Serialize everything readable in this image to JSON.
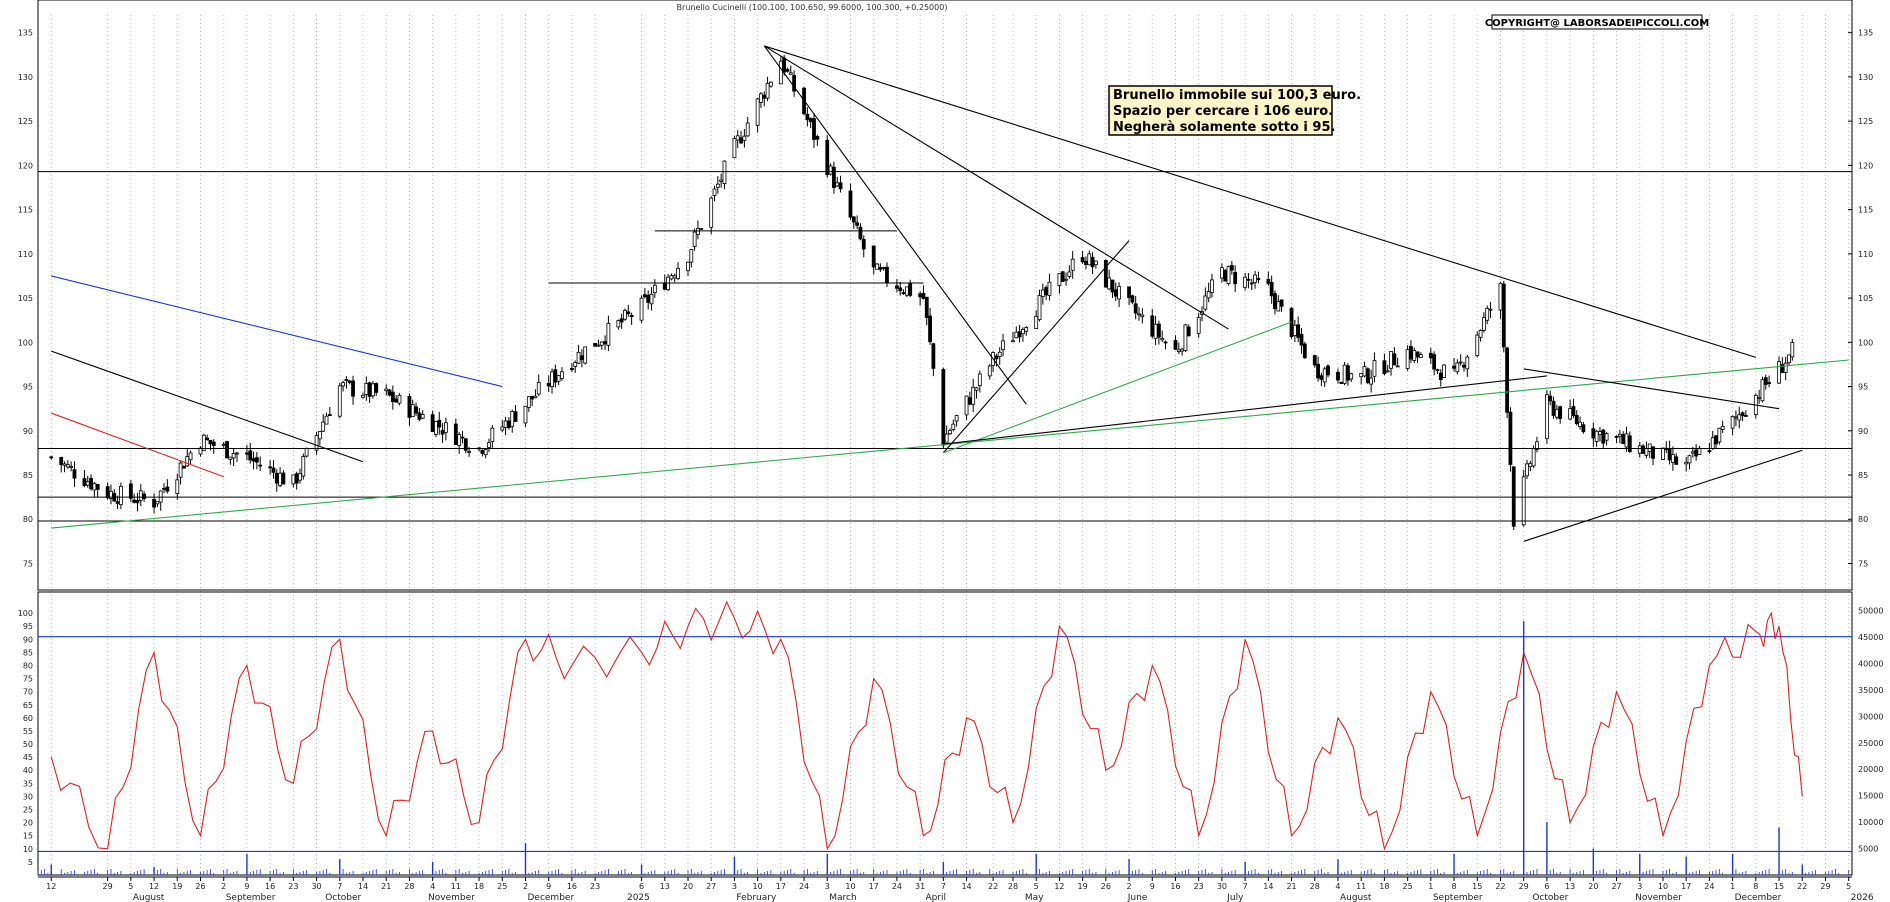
{
  "chart_data": {
    "type": "line",
    "subtype": "candlestick",
    "title": "Brunello Cucinelli (100.100, 100.650, 99.6000, 100.300, +0.25000)",
    "copyright": "COPYRIGHT@ LABORSADEIPICCOLI.COM",
    "annotation": [
      "Brunello immobile sui 100,3 euro.",
      "Spazio per cercare i 106 euro.",
      "Negherà solamente sotto i 95."
    ],
    "price_axis": {
      "ylim": [
        72,
        137
      ],
      "ticks": [
        75,
        80,
        85,
        90,
        95,
        100,
        105,
        110,
        115,
        120,
        125,
        130,
        135
      ]
    },
    "price_levels": [
      119.3,
      106.7,
      112.6,
      88.0,
      82.5,
      79.8
    ],
    "price_series": {
      "name": "close",
      "dates": [
        "2024-07-12",
        "2024-07-29",
        "2024-08-12",
        "2024-08-26",
        "2024-09-09",
        "2024-09-23",
        "2024-10-07",
        "2024-10-21",
        "2024-11-04",
        "2024-11-18",
        "2024-12-02",
        "2024-12-16",
        "2025-01-06",
        "2025-01-20",
        "2025-02-03",
        "2025-02-10",
        "2025-02-17",
        "2025-03-03",
        "2025-03-17",
        "2025-04-01",
        "2025-04-07",
        "2025-04-22",
        "2025-05-05",
        "2025-05-19",
        "2025-06-02",
        "2025-06-16",
        "2025-06-30",
        "2025-07-14",
        "2025-07-28",
        "2025-08-11",
        "2025-08-25",
        "2025-09-08",
        "2025-09-22",
        "2025-09-26",
        "2025-10-06",
        "2025-10-20",
        "2025-11-03",
        "2025-11-17",
        "2025-12-01",
        "2025-12-15",
        "2025-12-22"
      ],
      "values": [
        87,
        83,
        82,
        89,
        87,
        84,
        95,
        94,
        91,
        88,
        93,
        98,
        104,
        110,
        122,
        127,
        132,
        120,
        108,
        105,
        89,
        98,
        104,
        110,
        104,
        99,
        108,
        106,
        97,
        96,
        99,
        96,
        106,
        80,
        93,
        90,
        88,
        86,
        91,
        97,
        100.3
      ]
    },
    "trendlines": [
      {
        "color": "#000000",
        "from": [
          "2024-07-12",
          99
        ],
        "to": [
          "2024-10-14",
          86.5
        ]
      },
      {
        "color": "#e02020",
        "from": [
          "2024-07-12",
          92
        ],
        "to": [
          "2024-09-02",
          84.8
        ]
      },
      {
        "color": "#1a35d8",
        "from": [
          "2024-07-12",
          107.5
        ],
        "to": [
          "2024-11-25",
          95
        ]
      },
      {
        "color": "#2ea84a",
        "from": [
          "2024-07-12",
          79
        ],
        "to": [
          "2026-01-05",
          98
        ]
      },
      {
        "color": "#000000",
        "from": [
          "2025-02-12",
          133.5
        ],
        "to": [
          "2025-12-08",
          98.3
        ]
      },
      {
        "color": "#000000",
        "from": [
          "2025-02-12",
          133.5
        ],
        "to": [
          "2025-07-02",
          101.5
        ]
      },
      {
        "color": "#000000",
        "from": [
          "2025-02-12",
          133.5
        ],
        "to": [
          "2025-05-02",
          93
        ]
      },
      {
        "color": "#000000",
        "from": [
          "2025-04-07",
          87.5
        ],
        "to": [
          "2025-06-02",
          111.5
        ]
      },
      {
        "color": "#2ea84a",
        "from": [
          "2025-04-07",
          87.5
        ],
        "to": [
          "2025-07-21",
          102.3
        ]
      },
      {
        "color": "#000000",
        "from": [
          "2025-04-07",
          88.5
        ],
        "to": [
          "2025-10-06",
          96.2
        ]
      },
      {
        "color": "#000000",
        "from": [
          "2025-09-29",
          77.5
        ],
        "to": [
          "2025-12-22",
          87.8
        ]
      },
      {
        "color": "#000000",
        "from": [
          "2025-09-29",
          97
        ],
        "to": [
          "2025-12-15",
          92.5
        ]
      }
    ],
    "oscillator": {
      "name": "stochastic",
      "color": "#e02020",
      "ylim": [
        0,
        105
      ],
      "ticks": [
        5,
        10,
        15,
        20,
        25,
        30,
        35,
        40,
        45,
        50,
        55,
        60,
        65,
        70,
        75,
        80,
        85,
        90,
        95,
        100
      ],
      "bands": [
        91,
        9
      ],
      "dates": [
        "2024-07-12",
        "2024-07-29",
        "2024-08-12",
        "2024-08-26",
        "2024-09-09",
        "2024-09-23",
        "2024-10-07",
        "2024-10-21",
        "2024-11-04",
        "2024-11-18",
        "2024-12-02",
        "2024-12-16",
        "2025-01-06",
        "2025-01-20",
        "2025-02-03",
        "2025-02-17",
        "2025-03-03",
        "2025-03-17",
        "2025-04-01",
        "2025-04-14",
        "2025-04-28",
        "2025-05-12",
        "2025-05-26",
        "2025-06-09",
        "2025-06-23",
        "2025-07-07",
        "2025-07-21",
        "2025-08-04",
        "2025-08-18",
        "2025-09-01",
        "2025-09-15",
        "2025-09-29",
        "2025-10-13",
        "2025-10-27",
        "2025-11-10",
        "2025-11-24",
        "2025-12-08",
        "2025-12-15",
        "2025-12-22"
      ],
      "values": [
        45,
        10,
        85,
        15,
        80,
        35,
        90,
        15,
        55,
        20,
        90,
        80,
        85,
        95,
        98,
        90,
        10,
        75,
        15,
        60,
        20,
        95,
        40,
        80,
        15,
        90,
        15,
        60,
        10,
        70,
        15,
        85,
        20,
        70,
        15,
        80,
        93,
        95,
        30
      ]
    },
    "volume": {
      "color": "#1a35d8",
      "ylim": [
        0,
        52000
      ],
      "ticks": [
        5000,
        10000,
        15000,
        20000,
        25000,
        30000,
        35000,
        40000,
        45000,
        50000
      ],
      "dates": [
        "2024-07-12",
        "2024-08-12",
        "2024-09-09",
        "2024-10-07",
        "2024-11-04",
        "2024-12-02",
        "2025-01-06",
        "2025-02-03",
        "2025-03-03",
        "2025-04-07",
        "2025-05-05",
        "2025-06-02",
        "2025-07-07",
        "2025-08-04",
        "2025-09-08",
        "2025-09-29",
        "2025-10-06",
        "2025-10-20",
        "2025-11-03",
        "2025-11-17",
        "2025-12-01",
        "2025-12-15",
        "2025-12-22"
      ],
      "values": [
        2000,
        1500,
        4000,
        3000,
        2500,
        6000,
        2000,
        3500,
        4000,
        2500,
        4000,
        3000,
        2500,
        3000,
        4000,
        48000,
        10000,
        5000,
        4000,
        3500,
        4000,
        9000,
        2000
      ]
    },
    "x_axis": {
      "range": [
        "2024-07-08",
        "2026-01-06"
      ],
      "day_ticks": [
        {
          "label": "12",
          "date": "2024-07-12"
        },
        {
          "label": "29",
          "date": "2024-07-29"
        },
        {
          "label": "5",
          "date": "2024-08-05"
        },
        {
          "label": "12",
          "date": "2024-08-12"
        },
        {
          "label": "19",
          "date": "2024-08-19"
        },
        {
          "label": "26",
          "date": "2024-08-26"
        },
        {
          "label": "2",
          "date": "2024-09-02"
        },
        {
          "label": "9",
          "date": "2024-09-09"
        },
        {
          "label": "16",
          "date": "2024-09-16"
        },
        {
          "label": "23",
          "date": "2024-09-23"
        },
        {
          "label": "30",
          "date": "2024-09-30"
        },
        {
          "label": "7",
          "date": "2024-10-07"
        },
        {
          "label": "14",
          "date": "2024-10-14"
        },
        {
          "label": "21",
          "date": "2024-10-21"
        },
        {
          "label": "28",
          "date": "2024-10-28"
        },
        {
          "label": "4",
          "date": "2024-11-04"
        },
        {
          "label": "11",
          "date": "2024-11-11"
        },
        {
          "label": "18",
          "date": "2024-11-18"
        },
        {
          "label": "25",
          "date": "2024-11-25"
        },
        {
          "label": "2",
          "date": "2024-12-02"
        },
        {
          "label": "9",
          "date": "2024-12-09"
        },
        {
          "label": "16",
          "date": "2024-12-16"
        },
        {
          "label": "23",
          "date": "2024-12-23"
        },
        {
          "label": "6",
          "date": "2025-01-06"
        },
        {
          "label": "13",
          "date": "2025-01-13"
        },
        {
          "label": "20",
          "date": "2025-01-20"
        },
        {
          "label": "27",
          "date": "2025-01-27"
        },
        {
          "label": "3",
          "date": "2025-02-03"
        },
        {
          "label": "10",
          "date": "2025-02-10"
        },
        {
          "label": "17",
          "date": "2025-02-17"
        },
        {
          "label": "24",
          "date": "2025-02-24"
        },
        {
          "label": "3",
          "date": "2025-03-03"
        },
        {
          "label": "10",
          "date": "2025-03-10"
        },
        {
          "label": "17",
          "date": "2025-03-17"
        },
        {
          "label": "24",
          "date": "2025-03-24"
        },
        {
          "label": "31",
          "date": "2025-03-31"
        },
        {
          "label": "7",
          "date": "2025-04-07"
        },
        {
          "label": "14",
          "date": "2025-04-14"
        },
        {
          "label": "22",
          "date": "2025-04-22"
        },
        {
          "label": "28",
          "date": "2025-04-28"
        },
        {
          "label": "5",
          "date": "2025-05-05"
        },
        {
          "label": "12",
          "date": "2025-05-12"
        },
        {
          "label": "19",
          "date": "2025-05-19"
        },
        {
          "label": "26",
          "date": "2025-05-26"
        },
        {
          "label": "2",
          "date": "2025-06-02"
        },
        {
          "label": "9",
          "date": "2025-06-09"
        },
        {
          "label": "16",
          "date": "2025-06-16"
        },
        {
          "label": "23",
          "date": "2025-06-23"
        },
        {
          "label": "30",
          "date": "2025-06-30"
        },
        {
          "label": "7",
          "date": "2025-07-07"
        },
        {
          "label": "14",
          "date": "2025-07-14"
        },
        {
          "label": "21",
          "date": "2025-07-21"
        },
        {
          "label": "28",
          "date": "2025-07-28"
        },
        {
          "label": "4",
          "date": "2025-08-04"
        },
        {
          "label": "11",
          "date": "2025-08-11"
        },
        {
          "label": "18",
          "date": "2025-08-18"
        },
        {
          "label": "25",
          "date": "2025-08-25"
        },
        {
          "label": "1",
          "date": "2025-09-01"
        },
        {
          "label": "8",
          "date": "2025-09-08"
        },
        {
          "label": "15",
          "date": "2025-09-15"
        },
        {
          "label": "22",
          "date": "2025-09-22"
        },
        {
          "label": "29",
          "date": "2025-09-29"
        },
        {
          "label": "6",
          "date": "2025-10-06"
        },
        {
          "label": "13",
          "date": "2025-10-13"
        },
        {
          "label": "20",
          "date": "2025-10-20"
        },
        {
          "label": "27",
          "date": "2025-10-27"
        },
        {
          "label": "3",
          "date": "2025-11-03"
        },
        {
          "label": "10",
          "date": "2025-11-10"
        },
        {
          "label": "17",
          "date": "2025-11-17"
        },
        {
          "label": "24",
          "date": "2025-11-24"
        },
        {
          "label": "1",
          "date": "2025-12-01"
        },
        {
          "label": "8",
          "date": "2025-12-08"
        },
        {
          "label": "15",
          "date": "2025-12-15"
        },
        {
          "label": "22",
          "date": "2025-12-22"
        },
        {
          "label": "29",
          "date": "2025-12-29"
        },
        {
          "label": "5",
          "date": "2026-01-05"
        }
      ],
      "month_labels": [
        {
          "label": "August",
          "date": "2024-08-05"
        },
        {
          "label": "September",
          "date": "2024-09-02"
        },
        {
          "label": "October",
          "date": "2024-10-02"
        },
        {
          "label": "November",
          "date": "2024-11-02"
        },
        {
          "label": "December",
          "date": "2024-12-02"
        },
        {
          "label": "2025",
          "date": "2025-01-01"
        },
        {
          "label": "February",
          "date": "2025-02-03"
        },
        {
          "label": "March",
          "date": "2025-03-03"
        },
        {
          "label": "April",
          "date": "2025-04-01"
        },
        {
          "label": "May",
          "date": "2025-05-01"
        },
        {
          "label": "June",
          "date": "2025-06-01"
        },
        {
          "label": "July",
          "date": "2025-07-01"
        },
        {
          "label": "August",
          "date": "2025-08-04"
        },
        {
          "label": "September",
          "date": "2025-09-01"
        },
        {
          "label": "October",
          "date": "2025-10-01"
        },
        {
          "label": "November",
          "date": "2025-11-01"
        },
        {
          "label": "December",
          "date": "2025-12-01"
        },
        {
          "label": "2026",
          "date": "2026-01-05"
        }
      ]
    },
    "grid": true,
    "grid_style": "vertical dotted lines at day ticks"
  }
}
